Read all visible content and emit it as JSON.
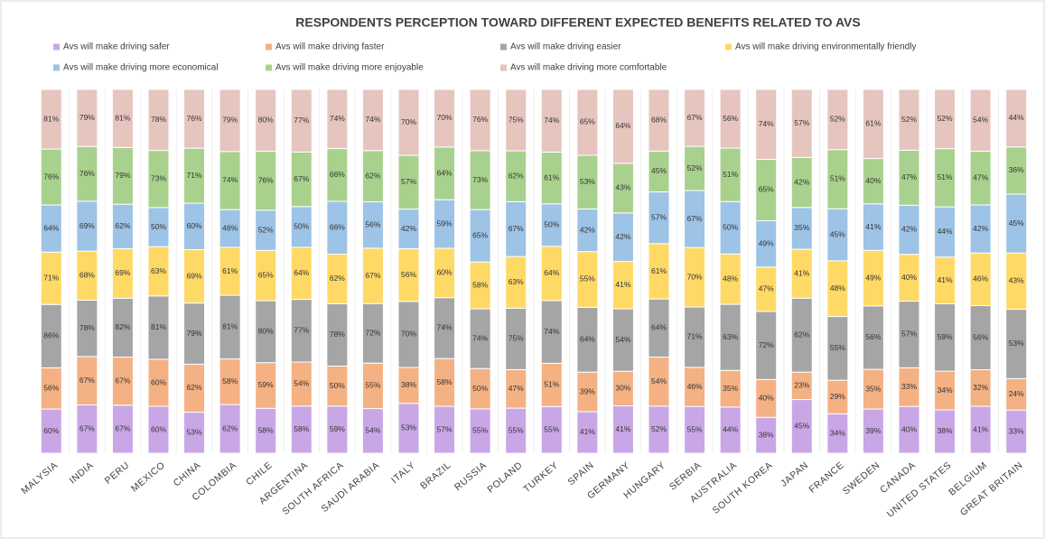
{
  "chart_data": {
    "type": "bar",
    "stacked": "percent",
    "title": "RESPONDENTS PERCEPTION TOWARD DIFFERENT EXPECTED BENEFITS RELATED TO AVS",
    "categories": [
      "MALYSIA",
      "INDIA",
      "PERU",
      "MEXICO",
      "CHINA",
      "COLOMBIA",
      "CHILE",
      "ARGENTINA",
      "SOUTH AFRICA",
      "SAUDI ARABIA",
      "ITALY",
      "BRAZIL",
      "RUSSIA",
      "POLAND",
      "TURKEY",
      "SPAIN",
      "GERMANY",
      "HUNGARY",
      "SERBIA",
      "AUSTRALIA",
      "SOUTH KOREA",
      "JAPAN",
      "FRANCE",
      "SWEDEN",
      "CANADA",
      "UNITED STATES",
      "BELGIUM",
      "GREAT BRITAIN"
    ],
    "series": [
      {
        "name": "Avs will make driving safer",
        "color": "#c9a7e6",
        "values": [
          60,
          67,
          67,
          60,
          53,
          62,
          58,
          58,
          59,
          54,
          53,
          57,
          55,
          55,
          55,
          41,
          41,
          52,
          55,
          44,
          38,
          45,
          34,
          39,
          40,
          38,
          41,
          33
        ],
        "value_labels": [
          "60%",
          "67%",
          "67%",
          "60%",
          "53%",
          "62%",
          "58%",
          "58%",
          "59%",
          "54%",
          "53%",
          "57%",
          "55%",
          "55%",
          "55%",
          "41%",
          "41%",
          "52%",
          "55%",
          "44%",
          "38%",
          "45%",
          "34%",
          "39%",
          "40%",
          "38%",
          "41%",
          "33%"
        ]
      },
      {
        "name": "Avs will make driving faster",
        "color": "#f4b183",
        "values": [
          56,
          67,
          67,
          60,
          62,
          58,
          59,
          54,
          50,
          55,
          38,
          58,
          50,
          47,
          51,
          39,
          30,
          54,
          46,
          35,
          40,
          23,
          29,
          35,
          33,
          34,
          32,
          24
        ],
        "value_labels": [
          "56%",
          "67%",
          "67%",
          "60%",
          "62%",
          "58%",
          "59%",
          "54%",
          "50%",
          "55%",
          "38%",
          "58%",
          "50%",
          "47%",
          "51%",
          "39%",
          "30%",
          "54%",
          "46%",
          "35%",
          "40%",
          "23%",
          "29%",
          "35%",
          "33%",
          "34%",
          "32%",
          "24%"
        ]
      },
      {
        "name": "Avs will make driving easier",
        "color": "#a5a5a5",
        "values": [
          86,
          78,
          82,
          81,
          79,
          81,
          80,
          77,
          78,
          72,
          70,
          74,
          74,
          75,
          74,
          64,
          54,
          64,
          71,
          63,
          72,
          62,
          55,
          56,
          57,
          59,
          56,
          53
        ],
        "value_labels": [
          "86%",
          "78%",
          "82%",
          "81%",
          "79%",
          "81%",
          "80%",
          "77%",
          "78%",
          "72%",
          "70%",
          "74%",
          "74%",
          "75%",
          "74%",
          "64%",
          "54%",
          "64%",
          "71%",
          "63%",
          "72%",
          "62%",
          "55%",
          "56%",
          "57%",
          "59%",
          "56%",
          "53%"
        ]
      },
      {
        "name": "Avs will make driving environmentally friendly",
        "color": "#ffd966",
        "values": [
          71,
          68,
          69,
          63,
          69,
          61,
          65,
          64,
          62,
          67,
          56,
          60,
          58,
          63,
          64,
          55,
          41,
          61,
          70,
          48,
          47,
          41,
          48,
          49,
          40,
          41,
          46,
          43
        ],
        "value_labels": [
          "71%",
          "68%",
          "69%",
          "63%",
          "69%",
          "61%",
          "65%",
          "64%",
          "62%",
          "67%",
          "56%",
          "60%",
          "58%",
          "63%",
          "64%",
          "55%",
          "41%",
          "61%",
          "70%",
          "48%",
          "47%",
          "41%",
          "48%",
          "49%",
          "40%",
          "41%",
          "46%",
          "43%"
        ]
      },
      {
        "name": "Avs will make driving more economical",
        "color": "#9dc3e6",
        "values": [
          64,
          69,
          62,
          50,
          60,
          48,
          52,
          50,
          66,
          56,
          42,
          59,
          65,
          67,
          50,
          42,
          42,
          57,
          67,
          50,
          49,
          35,
          45,
          41,
          42,
          44,
          42,
          45
        ],
        "value_labels": [
          "64%",
          "69%",
          "62%",
          "50%",
          "60%",
          "48%",
          "52%",
          "50%",
          "66%",
          "56%",
          "42%",
          "59%",
          "65%",
          "67%",
          "50%",
          "42%",
          "42%",
          "57%",
          "67%",
          "50%",
          "49%",
          "35%",
          "45%",
          "41%",
          "42%",
          "44%",
          "42%",
          "45%"
        ]
      },
      {
        "name": "Avs will make driving more enjoyable",
        "color": "#a9d18e",
        "values": [
          76,
          76,
          79,
          73,
          71,
          74,
          76,
          67,
          66,
          62,
          57,
          64,
          73,
          62,
          61,
          53,
          43,
          45,
          52,
          51,
          65,
          42,
          51,
          40,
          47,
          51,
          47,
          36
        ],
        "value_labels": [
          "76%",
          "76%",
          "79%",
          "73%",
          "71%",
          "74%",
          "76%",
          "67%",
          "66%",
          "62%",
          "57%",
          "64%",
          "73%",
          "62%",
          "61%",
          "53%",
          "43%",
          "45%",
          "52%",
          "51%",
          "65%",
          "42%",
          "51%",
          "40%",
          "47%",
          "51%",
          "47%",
          "36%"
        ]
      },
      {
        "name": "Avs will make driving more comfortable",
        "color": "#e6c5bf",
        "values": [
          81,
          79,
          81,
          78,
          76,
          79,
          80,
          77,
          74,
          74,
          70,
          70,
          76,
          75,
          74,
          65,
          64,
          68,
          67,
          56,
          74,
          57,
          52,
          61,
          52,
          52,
          54,
          44
        ],
        "value_labels": [
          "81%",
          "79%",
          "81%",
          "78%",
          "76%",
          "79%",
          "80%",
          "77%",
          "74%",
          "74%",
          "70%",
          "70%",
          "76%",
          "75%",
          "74%",
          "65%",
          "64%",
          "68%",
          "67%",
          "56%",
          "74%",
          "57%",
          "52%",
          "61%",
          "52%",
          "52%",
          "54%",
          "44%"
        ]
      }
    ]
  }
}
